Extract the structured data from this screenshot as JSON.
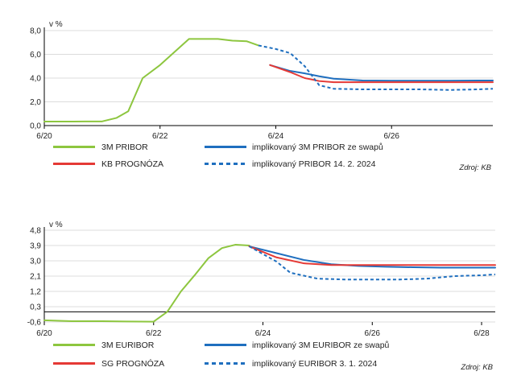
{
  "chart_data": [
    {
      "type": "line",
      "ylabel": "v %",
      "ylim": [
        0,
        8
      ],
      "yticks": [
        "0,0",
        "2,0",
        "4,0",
        "6,0",
        "8,0"
      ],
      "ytick_values": [
        0,
        2,
        4,
        6,
        8
      ],
      "xticks": [
        "6/20",
        "6/22",
        "6/24",
        "6/26"
      ],
      "xtick_values": [
        2020.5,
        2022.5,
        2024.5,
        2026.5
      ],
      "xlim": [
        2020.5,
        2028.25
      ],
      "source": "Zdroj: KB",
      "series": [
        {
          "name": "3M PRIBOR",
          "color": "#8dc63f",
          "style": "solid",
          "x": [
            2020.5,
            2021.0,
            2021.2,
            2021.5,
            2021.75,
            2021.95,
            2022.2,
            2022.5,
            2023.0,
            2023.5,
            2023.75,
            2024.0,
            2024.2
          ],
          "y": [
            0.34,
            0.34,
            0.35,
            0.35,
            0.65,
            1.2,
            4.0,
            5.1,
            7.3,
            7.3,
            7.15,
            7.1,
            6.75
          ]
        },
        {
          "name": "implikovaný 3M PRIBOR ze swapů",
          "color": "#1f6fbf",
          "style": "solid",
          "x": [
            2024.4,
            2024.75,
            2025.0,
            2025.25,
            2025.5,
            2026.0,
            2026.5,
            2027.0,
            2027.5,
            2028.0,
            2028.25
          ],
          "y": [
            5.1,
            4.6,
            4.4,
            4.15,
            3.95,
            3.8,
            3.78,
            3.78,
            3.78,
            3.8,
            3.8
          ]
        },
        {
          "name": "KB PROGNÓZA",
          "color": "#e53935",
          "style": "solid",
          "x": [
            2024.4,
            2024.75,
            2025.0,
            2025.25,
            2025.5,
            2026.0,
            2026.5,
            2027.0,
            2027.5,
            2028.0,
            2028.25
          ],
          "y": [
            5.1,
            4.5,
            4.0,
            3.75,
            3.65,
            3.65,
            3.65,
            3.65,
            3.65,
            3.65,
            3.65
          ]
        },
        {
          "name": "implikovaný PRIBOR 14. 2. 2024",
          "color": "#1f6fbf",
          "style": "dashed",
          "x": [
            2024.2,
            2024.5,
            2024.75,
            2025.0,
            2025.25,
            2025.5,
            2026.0,
            2026.5,
            2027.0,
            2027.5,
            2028.0,
            2028.25
          ],
          "y": [
            6.75,
            6.45,
            6.1,
            5.0,
            3.4,
            3.1,
            3.05,
            3.05,
            3.05,
            3.0,
            3.05,
            3.1
          ]
        }
      ]
    },
    {
      "type": "line",
      "ylabel": "v %",
      "ylim": [
        -0.6,
        4.8
      ],
      "yticks": [
        "-0,6",
        "0,3",
        "1,2",
        "2,1",
        "3,0",
        "3,9",
        "4,8"
      ],
      "ytick_values": [
        -0.6,
        0.3,
        1.2,
        2.1,
        3.0,
        3.9,
        4.8
      ],
      "xticks": [
        "6/20",
        "6/22",
        "6/24",
        "6/26",
        "6/28"
      ],
      "xtick_values": [
        2020.5,
        2022.5,
        2024.5,
        2026.5,
        2028.5
      ],
      "xlim": [
        2020.5,
        2028.75
      ],
      "source": "Zdroj: KB",
      "series": [
        {
          "name": "3M EURIBOR",
          "color": "#8dc63f",
          "style": "solid",
          "x": [
            2020.5,
            2021.0,
            2021.5,
            2022.0,
            2022.5,
            2022.75,
            2023.0,
            2023.25,
            2023.5,
            2023.75,
            2024.0,
            2024.25
          ],
          "y": [
            -0.5,
            -0.55,
            -0.55,
            -0.57,
            -0.58,
            0.0,
            1.2,
            2.15,
            3.15,
            3.75,
            3.95,
            3.9
          ]
        },
        {
          "name": "implikovaný 3M EURIBOR ze swapů",
          "color": "#1f6fbf",
          "style": "solid",
          "x": [
            2024.25,
            2024.75,
            2025.25,
            2025.75,
            2026.25,
            2026.75,
            2027.25,
            2027.75,
            2028.25,
            2028.75
          ],
          "y": [
            3.85,
            3.45,
            3.05,
            2.8,
            2.7,
            2.65,
            2.62,
            2.6,
            2.6,
            2.6
          ]
        },
        {
          "name": "SG PROGNÓZA",
          "color": "#e53935",
          "style": "solid",
          "x": [
            2024.25,
            2024.75,
            2025.25,
            2025.75,
            2026.25,
            2026.75,
            2027.25,
            2027.75,
            2028.25,
            2028.75
          ],
          "y": [
            3.85,
            3.2,
            2.85,
            2.75,
            2.75,
            2.75,
            2.75,
            2.75,
            2.75,
            2.75
          ]
        },
        {
          "name": "implikovaný EURIBOR 3. 1. 2024",
          "color": "#1f6fbf",
          "style": "dashed",
          "x": [
            2024.25,
            2024.75,
            2025.0,
            2025.5,
            2026.0,
            2026.5,
            2027.0,
            2027.5,
            2028.0,
            2028.5,
            2028.75
          ],
          "y": [
            3.85,
            2.95,
            2.3,
            1.95,
            1.9,
            1.9,
            1.9,
            1.95,
            2.1,
            2.15,
            2.2
          ]
        }
      ]
    }
  ]
}
